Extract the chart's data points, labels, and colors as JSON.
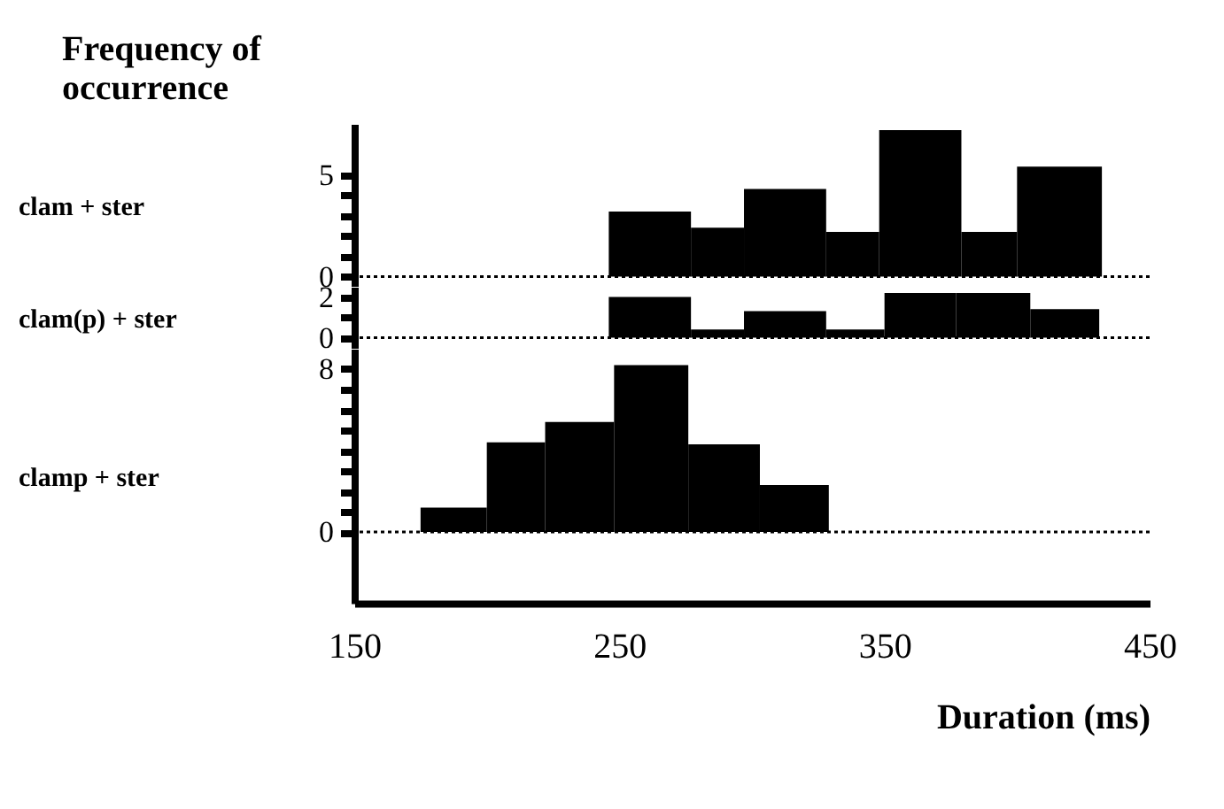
{
  "chart_data": [
    {
      "type": "histogram",
      "title": "Frequency of occurrence",
      "ylabel": "clam + ster",
      "color": "#000000",
      "bins": [
        246,
        277,
        297,
        328,
        348,
        379,
        400,
        432
      ],
      "values": [
        3.2,
        2.4,
        4.3,
        2.2,
        7.2,
        2.2,
        5.4
      ],
      "xlim": [
        150,
        450
      ],
      "ylim": [
        -0.5,
        7.5
      ],
      "yticks": [
        0,
        {
          "value": 1,
          "label": null
        },
        {
          "value": 2,
          "label": null
        },
        {
          "value": 3,
          "label": null
        },
        {
          "value": 4,
          "label": null
        },
        5
      ],
      "ref_lines": [
        {
          "axis": "y",
          "value": 0,
          "line_style": "dotted"
        }
      ],
      "grid": false,
      "tick_labels": "y"
    },
    {
      "type": "histogram",
      "ylabel": "clam(p) + ster",
      "color": "#000000",
      "bins": [
        246,
        277,
        297,
        328,
        350,
        377,
        405,
        431
      ],
      "values": [
        2.0,
        0.4,
        1.3,
        0.4,
        2.2,
        2.2,
        1.4
      ],
      "xlim": [
        150,
        450
      ],
      "ylim": [
        -0.5,
        2.5
      ],
      "yticks": [
        0,
        {
          "value": 1,
          "label": null
        },
        2
      ],
      "ref_lines": [
        {
          "axis": "y",
          "value": 0,
          "line_style": "dotted"
        }
      ],
      "grid": false,
      "tick_labels": "y"
    },
    {
      "type": "histogram",
      "ylabel": "clamp + ster",
      "xlabel": "Duration (ms)",
      "color": "#000000",
      "bins": [
        175,
        200,
        222,
        248,
        276,
        303,
        329
      ],
      "values": [
        1.2,
        4.4,
        5.4,
        8.2,
        4.3,
        2.3
      ],
      "xlim": [
        150,
        450
      ],
      "xticks": [
        150,
        250,
        350,
        450
      ],
      "ylim": [
        -3.5,
        9
      ],
      "yticks": [
        0,
        {
          "value": 1,
          "label": null
        },
        {
          "value": 2,
          "label": null
        },
        {
          "value": 3,
          "label": null
        },
        {
          "value": 4,
          "label": null
        },
        {
          "value": 5,
          "label": null
        },
        {
          "value": 6,
          "label": null
        },
        {
          "value": 7,
          "label": null
        },
        8
      ],
      "ref_lines": [
        {
          "axis": "y",
          "value": 0,
          "line_style": "dotted"
        }
      ],
      "grid": false
    }
  ]
}
